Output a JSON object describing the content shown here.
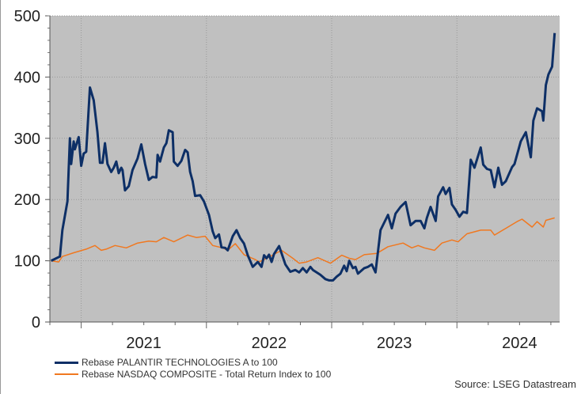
{
  "chart_data": {
    "type": "line",
    "title": "",
    "xlabel": "",
    "ylabel": "",
    "xlim": [
      2020.75,
      2024.82
    ],
    "ylim": [
      0,
      500
    ],
    "yticks": [
      "0",
      "100",
      "200",
      "300",
      "400",
      "500"
    ],
    "xtick_labels": [
      "2021",
      "2022",
      "2023",
      "2024"
    ],
    "grid": true,
    "legend_position": "bottom-left",
    "background": "#c0c0c0",
    "series": [
      {
        "name": "Rebase PALANTIR TECHNOLOGIES A to 100",
        "color": "#0d2f66",
        "x": [
          2020.76,
          2020.83,
          2020.85,
          2020.89,
          2020.91,
          2020.92,
          2020.94,
          2020.95,
          2020.98,
          2021.0,
          2021.02,
          2021.04,
          2021.07,
          2021.1,
          2021.13,
          2021.15,
          2021.17,
          2021.19,
          2021.21,
          2021.24,
          2021.26,
          2021.28,
          2021.3,
          2021.32,
          2021.33,
          2021.35,
          2021.38,
          2021.41,
          2021.45,
          2021.48,
          2021.51,
          2021.54,
          2021.57,
          2021.6,
          2021.61,
          2021.63,
          2021.66,
          2021.68,
          2021.7,
          2021.73,
          2021.74,
          2021.77,
          2021.8,
          2021.83,
          2021.85,
          2021.87,
          2021.89,
          2021.91,
          2021.95,
          2021.98,
          2022.02,
          2022.05,
          2022.07,
          2022.1,
          2022.12,
          2022.15,
          2022.17,
          2022.21,
          2022.24,
          2022.27,
          2022.3,
          2022.33,
          2022.37,
          2022.41,
          2022.44,
          2022.46,
          2022.48,
          2022.5,
          2022.52,
          2022.54,
          2022.58,
          2022.63,
          2022.67,
          2022.71,
          2022.74,
          2022.77,
          2022.8,
          2022.83,
          2022.85,
          2022.88,
          2022.91,
          2022.95,
          2022.98,
          2023.01,
          2023.04,
          2023.07,
          2023.1,
          2023.12,
          2023.14,
          2023.17,
          2023.19,
          2023.21,
          2023.26,
          2023.29,
          2023.32,
          2023.35,
          2023.39,
          2023.45,
          2023.48,
          2023.51,
          2023.55,
          2023.59,
          2023.63,
          2023.67,
          2023.71,
          2023.74,
          2023.76,
          2023.79,
          2023.83,
          2023.85,
          2023.89,
          2023.91,
          2023.94,
          2023.96,
          2023.99,
          2024.02,
          2024.05,
          2024.08,
          2024.11,
          2024.14,
          2024.19,
          2024.21,
          2024.24,
          2024.27,
          2024.3,
          2024.33,
          2024.36,
          2024.39,
          2024.44,
          2024.46,
          2024.51,
          2024.55,
          2024.59,
          2024.61,
          2024.64,
          2024.68,
          2024.69,
          2024.71,
          2024.73,
          2024.76,
          2024.78
        ],
        "values": [
          100,
          107,
          150,
          197,
          300,
          258,
          295,
          282,
          302,
          255,
          275,
          278,
          383,
          362,
          310,
          260,
          260,
          292,
          258,
          245,
          252,
          262,
          243,
          252,
          248,
          215,
          222,
          248,
          267,
          290,
          258,
          232,
          237,
          236,
          273,
          262,
          285,
          292,
          313,
          310,
          262,
          255,
          263,
          281,
          277,
          245,
          230,
          206,
          207,
          197,
          175,
          148,
          137,
          143,
          122,
          121,
          117,
          140,
          150,
          137,
          128,
          109,
          90,
          98,
          90,
          109,
          104,
          110,
          98,
          111,
          124,
          94,
          82,
          85,
          81,
          88,
          81,
          90,
          85,
          81,
          77,
          70,
          68,
          68,
          74,
          79,
          92,
          83,
          100,
          88,
          90,
          79,
          88,
          90,
          94,
          81,
          150,
          175,
          153,
          177,
          188,
          196,
          158,
          165,
          165,
          153,
          170,
          188,
          165,
          205,
          220,
          209,
          219,
          192,
          183,
          172,
          180,
          178,
          265,
          252,
          285,
          257,
          250,
          248,
          220,
          252,
          224,
          230,
          253,
          258,
          295,
          310,
          269,
          329,
          349,
          344,
          329,
          387,
          404,
          417,
          472
        ]
      },
      {
        "name": "Rebase NASDAQ COMPOSITE - Total Return Index to 100",
        "color": "#f07820",
        "x": [
          2020.76,
          2020.82,
          2020.85,
          2020.94,
          2021.04,
          2021.11,
          2021.16,
          2021.2,
          2021.27,
          2021.36,
          2021.45,
          2021.54,
          2021.6,
          2021.66,
          2021.74,
          2021.85,
          2021.92,
          2021.99,
          2022.05,
          2022.13,
          2022.17,
          2022.23,
          2022.3,
          2022.39,
          2022.42,
          2022.48,
          2022.6,
          2022.69,
          2022.74,
          2022.8,
          2022.85,
          2022.89,
          2022.99,
          2023.08,
          2023.14,
          2023.19,
          2023.26,
          2023.36,
          2023.45,
          2023.57,
          2023.64,
          2023.69,
          2023.74,
          2023.82,
          2023.88,
          2023.96,
          2024.01,
          2024.08,
          2024.19,
          2024.27,
          2024.3,
          2024.39,
          2024.48,
          2024.52,
          2024.6,
          2024.64,
          2024.69,
          2024.71,
          2024.78
        ],
        "values": [
          100,
          98,
          107,
          113,
          119,
          125,
          117,
          119,
          125,
          121,
          129,
          132,
          131,
          138,
          131,
          142,
          138,
          140,
          125,
          121,
          117,
          128,
          110,
          102,
          98,
          104,
          117,
          104,
          96,
          98,
          102,
          105,
          96,
          109,
          104,
          102,
          110,
          112,
          123,
          129,
          121,
          125,
          121,
          117,
          129,
          134,
          131,
          144,
          150,
          150,
          142,
          153,
          164,
          168,
          155,
          164,
          155,
          166,
          170
        ]
      }
    ]
  },
  "legend": {
    "items": [
      "Rebase PALANTIR TECHNOLOGIES A to 100",
      "Rebase NASDAQ COMPOSITE - Total Return Index to 100"
    ]
  },
  "source": "Source: LSEG Datastream"
}
